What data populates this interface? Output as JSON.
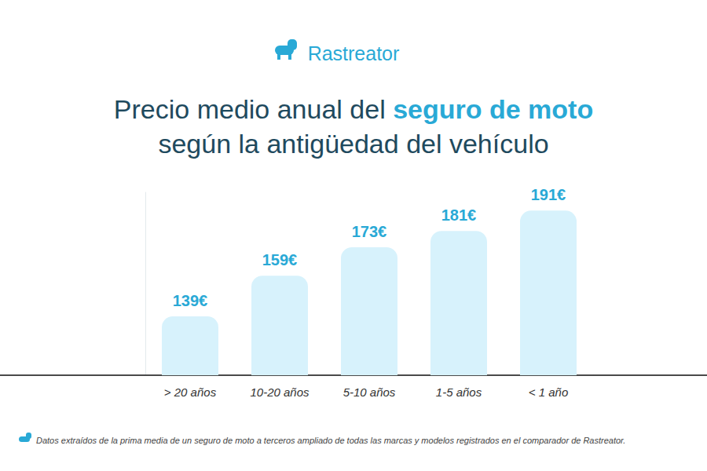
{
  "chart_data": {
    "type": "bar",
    "brand": "Rastreator",
    "title": "Precio medio anual del seguro de moto\nsegún la antigüedad del vehículo",
    "title_highlight": "seguro de moto",
    "categories": [
      "> 20 años",
      "10-20 años",
      "5-10 años",
      "1-5 años",
      "< 1 año"
    ],
    "values": [
      139,
      159,
      173,
      181,
      191
    ],
    "value_labels": [
      "139€",
      "159€",
      "173€",
      "181€",
      "191€"
    ],
    "color": "#d7f2fc",
    "ylim": [
      110,
      200
    ],
    "data_labels": true,
    "tick_labels": "x",
    "grid": false,
    "footnote": "Datos extraídos de la prima media de un seguro de moto a terceros ampliado de todas las marcas y modelos registrados en el comparador de Rastreator."
  }
}
